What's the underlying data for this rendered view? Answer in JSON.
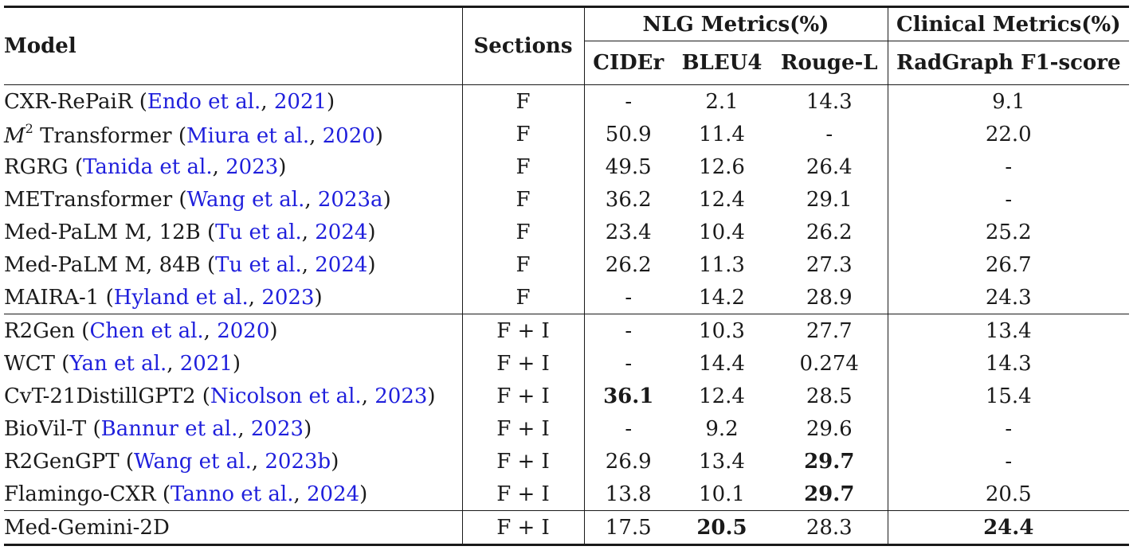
{
  "header": {
    "model": "Model",
    "sections": "Sections",
    "nlg_group": "NLG Metrics(%)",
    "clinical_group": "Clinical Metrics(%)",
    "cider": "CIDEr",
    "bleu4": "BLEU4",
    "rougel": "Rouge-L",
    "radgraph": "RadGraph F1-score"
  },
  "rows": [
    {
      "name": "CXR-RePaiR (",
      "cite_a": "Endo et al.",
      "cite_sep": ", ",
      "cite_y": "2021",
      "close": ")",
      "sections": "F",
      "cider": "-",
      "bleu4": "2.1",
      "rougel": "14.3",
      "radgraph": "9.1"
    },
    {
      "name_math": "M",
      "name_sup": "2",
      "name": " Transformer (",
      "cite_a": "Miura et al.",
      "cite_sep": ", ",
      "cite_y": "2020",
      "close": ")",
      "sections": "F",
      "cider": "50.9",
      "bleu4": "11.4",
      "rougel": "-",
      "radgraph": "22.0"
    },
    {
      "name": "RGRG (",
      "cite_a": "Tanida et al.",
      "cite_sep": ", ",
      "cite_y": "2023",
      "close": ")",
      "sections": "F",
      "cider": "49.5",
      "bleu4": "12.6",
      "rougel": "26.4",
      "radgraph": "-"
    },
    {
      "name": "METransformer (",
      "cite_a": "Wang et al.",
      "cite_sep": ", ",
      "cite_y": "2023a",
      "close": ")",
      "sections": "F",
      "cider": "36.2",
      "bleu4": "12.4",
      "rougel": "29.1",
      "radgraph": "-"
    },
    {
      "name": "Med-PaLM M, 12B (",
      "cite_a": "Tu et al.",
      "cite_sep": ", ",
      "cite_y": "2024",
      "close": ")",
      "sections": "F",
      "cider": "23.4",
      "bleu4": "10.4",
      "rougel": "26.2",
      "radgraph": "25.2"
    },
    {
      "name": "Med-PaLM M, 84B (",
      "cite_a": "Tu et al.",
      "cite_sep": ", ",
      "cite_y": "2024",
      "close": ")",
      "sections": "F",
      "cider": "26.2",
      "bleu4": "11.3",
      "rougel": "27.3",
      "radgraph": "26.7"
    },
    {
      "name": "MAIRA-1 (",
      "cite_a": "Hyland et al.",
      "cite_sep": ", ",
      "cite_y": "2023",
      "close": ")",
      "sections": "F",
      "cider": "-",
      "bleu4": "14.2",
      "rougel": "28.9",
      "radgraph": "24.3"
    },
    {
      "name": "R2Gen (",
      "cite_a": "Chen et al.",
      "cite_sep": ", ",
      "cite_y": "2020",
      "close": ")",
      "sections": "F + I",
      "cider": "-",
      "bleu4": "10.3",
      "rougel": "27.7",
      "radgraph": "13.4"
    },
    {
      "name": "WCT (",
      "cite_a": "Yan et al.",
      "cite_sep": ", ",
      "cite_y": "2021",
      "close": ")",
      "sections": "F + I",
      "cider": "-",
      "bleu4": "14.4",
      "rougel": "0.274",
      "radgraph": "14.3"
    },
    {
      "name": "CvT-21DistillGPT2 (",
      "cite_a": "Nicolson et al.",
      "cite_sep": ", ",
      "cite_y": "2023",
      "close": ")",
      "sections": "F + I",
      "cider": "36.1",
      "bleu4": "12.4",
      "rougel": "28.5",
      "radgraph": "15.4"
    },
    {
      "name": "BioVil-T (",
      "cite_a": "Bannur et al.",
      "cite_sep": ", ",
      "cite_y": "2023",
      "close": ")",
      "sections": "F + I",
      "cider": "-",
      "bleu4": "9.2",
      "rougel": "29.6",
      "radgraph": "-"
    },
    {
      "name": "R2GenGPT (",
      "cite_a": "Wang et al.",
      "cite_sep": ", ",
      "cite_y": "2023b",
      "close": ")",
      "sections": "F + I",
      "cider": "26.9",
      "bleu4": "13.4",
      "rougel": "29.7",
      "radgraph": "-"
    },
    {
      "name": "Flamingo-CXR (",
      "cite_a": "Tanno et al.",
      "cite_sep": ", ",
      "cite_y": "2024",
      "close": ")",
      "sections": "F + I",
      "cider": "13.8",
      "bleu4": "10.1",
      "rougel": "29.7",
      "radgraph": "20.5"
    },
    {
      "name": "Med-Gemini-2D",
      "sections": "F + I",
      "cider": "17.5",
      "bleu4": "20.5",
      "rougel": "28.3",
      "radgraph": "24.4"
    }
  ],
  "colors": {
    "text": "#1a1a1a",
    "citation": "#1f1fdc"
  }
}
